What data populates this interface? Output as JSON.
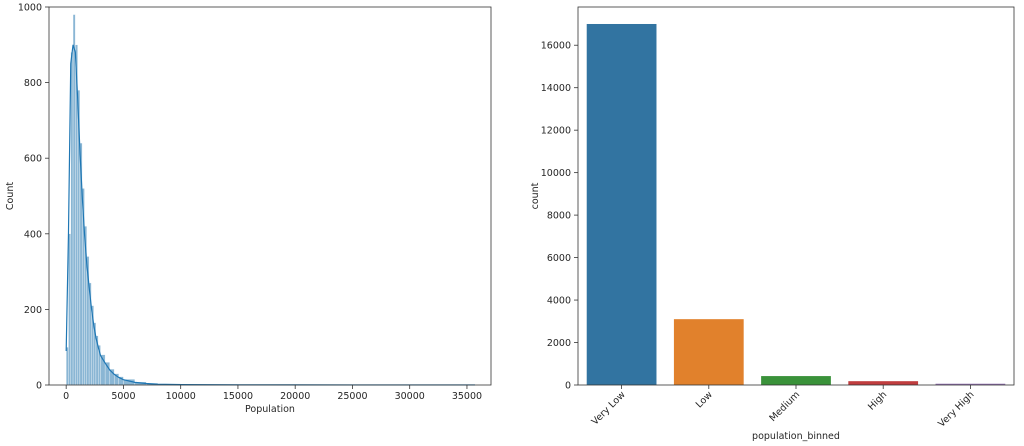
{
  "chart_data": [
    {
      "type": "histogram",
      "xlabel": "Population",
      "ylabel": "Count",
      "xlim": [
        -1500,
        37100
      ],
      "ylim": [
        0,
        1000
      ],
      "x_ticks": [
        0,
        5000,
        10000,
        15000,
        20000,
        25000,
        30000,
        35000
      ],
      "x_tick_labels": [
        "0",
        "5000",
        "10000",
        "15000",
        "20000",
        "25000",
        "30000",
        "35000"
      ],
      "y_ticks": [
        0,
        200,
        400,
        600,
        800,
        1000
      ],
      "y_tick_labels": [
        "0",
        "200",
        "400",
        "600",
        "800",
        "1000"
      ],
      "kde": true,
      "bar_color": "#4c8fbd",
      "line_color": "#1f77b4",
      "bins": {
        "x": [
          0,
          200,
          400,
          600,
          800,
          1000,
          1200,
          1400,
          1600,
          1800,
          2000,
          2200,
          2400,
          2600,
          2800,
          3000,
          3400,
          3800,
          4200,
          4600,
          5000,
          6000,
          7000,
          8000,
          10000,
          15000,
          20000,
          25000,
          30000,
          35000
        ],
        "width": [
          200,
          200,
          200,
          200,
          200,
          200,
          200,
          200,
          200,
          200,
          200,
          200,
          200,
          200,
          200,
          400,
          400,
          400,
          400,
          400,
          1000,
          1000,
          1000,
          2000,
          5000,
          5000,
          5000,
          5000,
          5000,
          700
        ],
        "count": [
          100,
          400,
          880,
          980,
          900,
          780,
          640,
          520,
          420,
          340,
          270,
          210,
          165,
          130,
          105,
          80,
          60,
          42,
          30,
          22,
          15,
          8,
          5,
          3,
          2,
          1,
          1,
          1,
          1,
          1
        ]
      },
      "kde_curve": {
        "x": [
          0,
          200,
          400,
          600,
          800,
          1000,
          1200,
          1400,
          1600,
          1800,
          2000,
          2200,
          2400,
          2600,
          2800,
          3000,
          3400,
          3800,
          4200,
          4600,
          5000,
          6000,
          7000,
          8000,
          10000,
          15000,
          20000,
          25000,
          30000,
          35700
        ],
        "y": [
          90,
          400,
          850,
          900,
          880,
          760,
          620,
          500,
          400,
          320,
          260,
          205,
          160,
          125,
          100,
          78,
          58,
          40,
          28,
          20,
          14,
          7,
          4,
          2,
          1,
          0.5,
          0.3,
          0.2,
          0.2,
          0.1
        ]
      }
    },
    {
      "type": "bar",
      "xlabel": "population_binned",
      "ylabel": "count",
      "ylim": [
        0,
        17800
      ],
      "y_ticks": [
        0,
        2000,
        4000,
        6000,
        8000,
        10000,
        12000,
        14000,
        16000
      ],
      "y_tick_labels": [
        "0",
        "2000",
        "4000",
        "6000",
        "8000",
        "10000",
        "12000",
        "14000",
        "16000"
      ],
      "categories": [
        "Very Low",
        "Low",
        "Medium",
        "High",
        "Very High"
      ],
      "values": [
        17000,
        3100,
        420,
        180,
        60
      ],
      "colors": [
        "#3274a1",
        "#e1812c",
        "#3a923a",
        "#c03d3e",
        "#9372b2"
      ]
    }
  ]
}
